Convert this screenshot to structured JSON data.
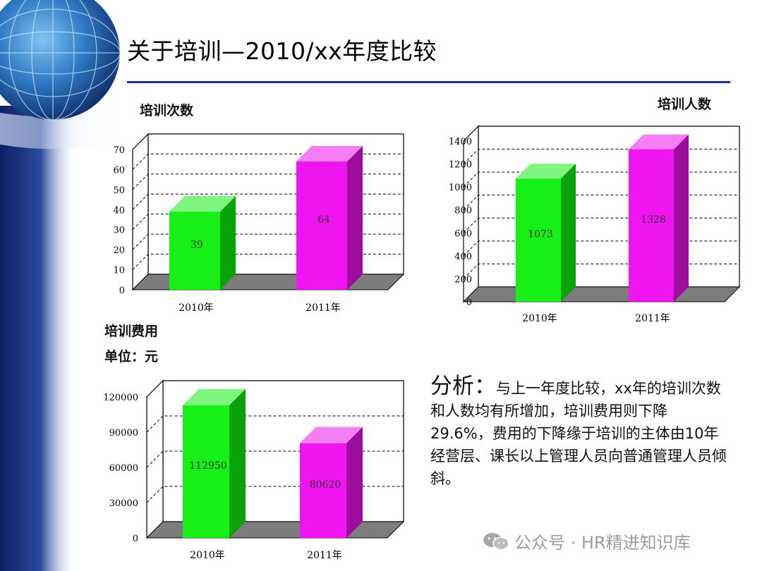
{
  "title": "关于培训—2010/xx年度比较",
  "labels": {
    "count": "培训次数",
    "people": "培训人数",
    "cost": "培训费用",
    "unit": "单位：元"
  },
  "analysis": {
    "head": "分析：",
    "body": "与上一年度比较，xx年的培训次数和人数均有所增加，培训费用则下降29.6%，费用的下降缘于培训的主体由10年经营层、课长以上管理人员向普通管理人员倾斜。"
  },
  "watermark": "公众号 · HR精进知识库",
  "colors": {
    "green": "#17f017",
    "magenta": "#f014f0",
    "rule": "#1c2fa0"
  },
  "chart_data": [
    {
      "type": "bar",
      "title": "培训次数",
      "categories": [
        "2010年",
        "2011年"
      ],
      "values": [
        39,
        64
      ],
      "value_labels": [
        "39",
        "64"
      ],
      "y_ticks": [
        "0",
        "10",
        "20",
        "30",
        "40",
        "50",
        "60",
        "70"
      ],
      "ylim": [
        0,
        70
      ]
    },
    {
      "type": "bar",
      "title": "培训人数",
      "categories": [
        "2010年",
        "2011年"
      ],
      "values": [
        1073,
        1328
      ],
      "value_labels": [
        "1073",
        "1328"
      ],
      "y_ticks": [
        "0",
        "200",
        "400",
        "600",
        "800",
        "1000",
        "1200",
        "1400"
      ],
      "ylim": [
        0,
        1400
      ]
    },
    {
      "type": "bar",
      "title": "培训费用",
      "categories": [
        "2010年",
        "2011年"
      ],
      "values": [
        112950,
        80620
      ],
      "value_labels": [
        "112950",
        "80620"
      ],
      "y_ticks": [
        "0",
        "30000",
        "60000",
        "90000",
        "120000"
      ],
      "ylim": [
        0,
        120000
      ]
    }
  ]
}
